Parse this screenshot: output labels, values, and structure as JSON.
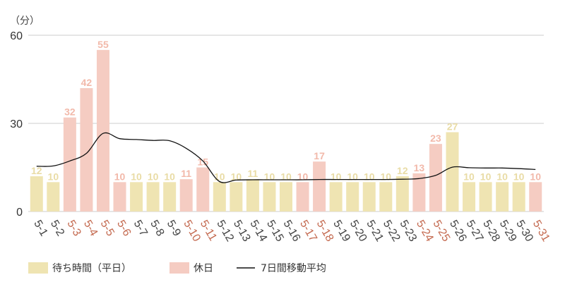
{
  "chart_data": {
    "type": "bar",
    "unit_label": "（分）",
    "ylim": [
      0,
      60
    ],
    "yticks": [
      "0",
      "30",
      "60"
    ],
    "grid": true,
    "legend_position": "bottom-left",
    "categories": [
      "5-1",
      "5-2",
      "5-3",
      "5-4",
      "5-5",
      "5-6",
      "5-7",
      "5-8",
      "5-9",
      "5-10",
      "5-11",
      "5-12",
      "5-13",
      "5-14",
      "5-15",
      "5-16",
      "5-17",
      "5-18",
      "5-19",
      "5-20",
      "5-21",
      "5-22",
      "5-23",
      "5-24",
      "5-25",
      "5-26",
      "5-27",
      "5-28",
      "5-29",
      "5-30",
      "5-31"
    ],
    "values": [
      12,
      10,
      32,
      42,
      55,
      10,
      10,
      10,
      10,
      11,
      15,
      10,
      10,
      11,
      10,
      10,
      10,
      17,
      10,
      10,
      10,
      10,
      12,
      13,
      23,
      27,
      10,
      10,
      10,
      10,
      10
    ],
    "holiday": [
      false,
      false,
      true,
      true,
      true,
      true,
      false,
      false,
      false,
      true,
      true,
      false,
      false,
      false,
      false,
      false,
      true,
      true,
      false,
      false,
      false,
      false,
      false,
      true,
      true,
      false,
      false,
      false,
      false,
      false,
      true
    ],
    "moving_average": [
      15.4,
      15.5,
      17.2,
      19.8,
      26.6,
      24.8,
      24.5,
      24.2,
      24.1,
      21.5,
      17.2,
      10.2,
      10.7,
      10.8,
      10.8,
      10.8,
      10.8,
      10.9,
      10.9,
      10.9,
      10.9,
      10.9,
      11.0,
      11.2,
      12.3,
      15.1,
      14.9,
      14.8,
      14.8,
      14.6,
      14.3
    ],
    "series": [
      {
        "name": "待ち時間（平日）",
        "color": "#efe4b2"
      },
      {
        "name": "休日",
        "color": "#f5ccc2"
      },
      {
        "name": "7日間移動平均",
        "color": "#111111"
      }
    ],
    "colors": {
      "weekday_bar": "#efe4b2",
      "holiday_bar": "#f5ccc2",
      "weekday_value_label": "#e9dca6",
      "holiday_value_label": "#f2b9aa",
      "weekday_date_label": "#444444",
      "holiday_date_label": "#c46a50",
      "gridline": "#cccccc",
      "line": "#111111"
    }
  }
}
